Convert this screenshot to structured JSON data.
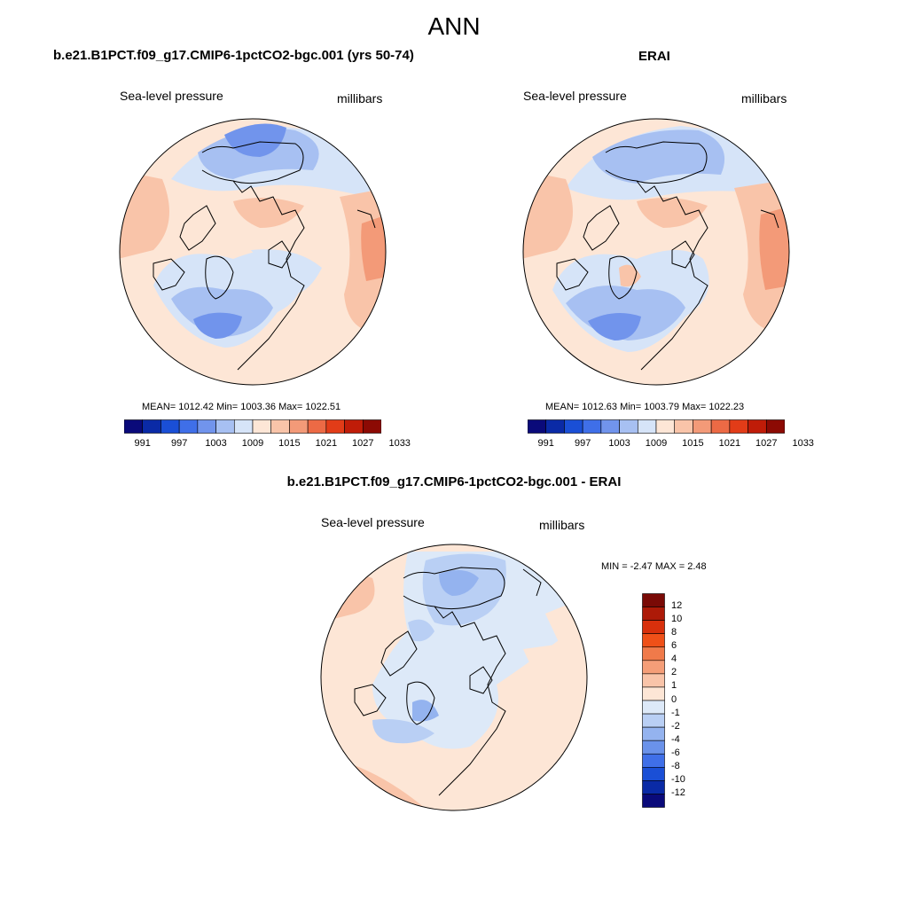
{
  "figure_title": "ANN",
  "panels": [
    {
      "title": "b.e21.B1PCT.f09_g17.CMIP6-1pctCO2-bgc.001 (yrs 50-74)",
      "left_label": "Sea-level pressure",
      "right_label": "millibars",
      "stats": "MEAN= 1012.42  Min= 1003.36  Max= 1022.51"
    },
    {
      "title": "ERAI",
      "left_label": "Sea-level pressure",
      "right_label": "millibars",
      "stats": "MEAN= 1012.63  Min= 1003.79  Max= 1022.23"
    },
    {
      "title": "b.e21.B1PCT.f09_g17.CMIP6-1pctCO2-bgc.001 - ERAI",
      "left_label": "Sea-level pressure",
      "right_label": "millibars",
      "stats": "MIN =  -2.47 MAX =   2.48"
    }
  ],
  "colorbar_abs": {
    "ticks": [
      "991",
      "997",
      "1003",
      "1009",
      "1015",
      "1021",
      "1027",
      "1033"
    ],
    "colors": [
      "#0a0a7a",
      "#0a2aa6",
      "#1a4fd6",
      "#3f6fe8",
      "#7194ec",
      "#a7c0f2",
      "#d6e4f8",
      "#fde6d6",
      "#f9c4a9",
      "#f39a78",
      "#ec6a45",
      "#e23c18",
      "#c01c08",
      "#8c0a04"
    ]
  },
  "colorbar_diff": {
    "ticks": [
      "12",
      "10",
      "8",
      "6",
      "4",
      "2",
      "1",
      "0",
      "-1",
      "-2",
      "-4",
      "-6",
      "-8",
      "-10",
      "-12"
    ],
    "colors": [
      "#7a0a06",
      "#ad1a08",
      "#d8300c",
      "#ef5018",
      "#f07a4a",
      "#f59e78",
      "#f9c4a9",
      "#fde6d6",
      "#dde9f8",
      "#b9cff4",
      "#94b3ef",
      "#6a92ea",
      "#3f6fe8",
      "#1a4fd6",
      "#0a2aa6",
      "#0a0a7a"
    ]
  }
}
